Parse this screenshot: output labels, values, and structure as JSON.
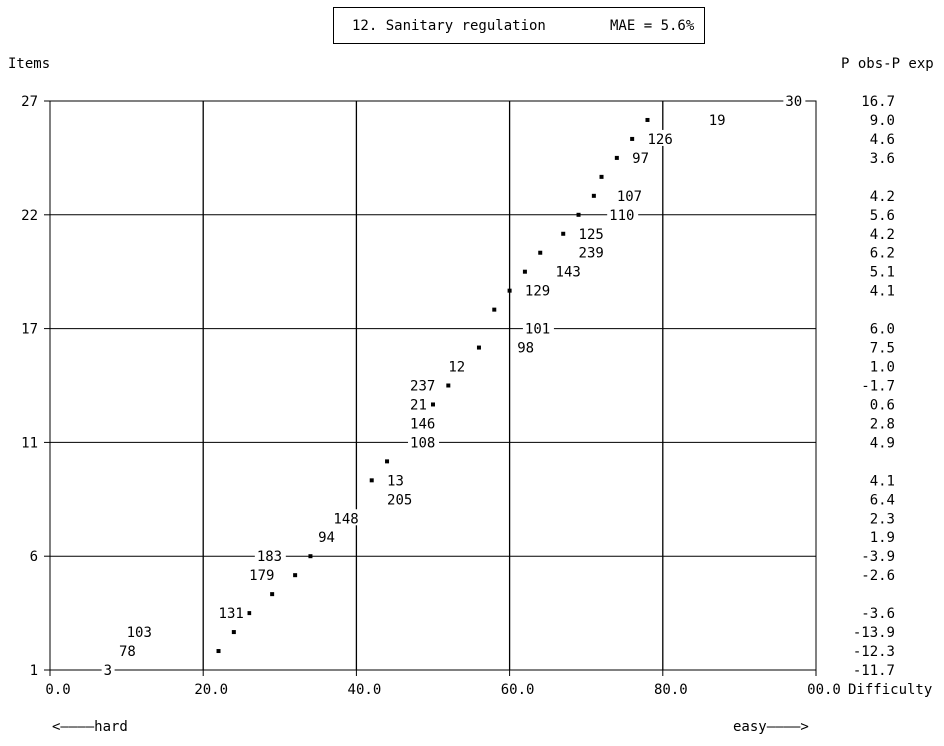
{
  "header": {
    "title": "12. Sanitary regulation",
    "mae": "MAE = 5.6%"
  },
  "left_axis_label": "Items",
  "right_axis_label": "P obs-P exp",
  "x_axis_label": "Difficulty",
  "footer": {
    "left": "<————hard",
    "right": "easy————>"
  },
  "chart_data": {
    "type": "scatter",
    "title": "12. Sanitary regulation",
    "annotation": "MAE = 5.6%",
    "xlabel": "Difficulty",
    "ylabel": "Items",
    "xlim": [
      0,
      100
    ],
    "ylim": [
      1,
      31
    ],
    "x_tick_labels": [
      "0.0",
      "20.0",
      "40.0",
      "60.0",
      "80.0",
      "00.0"
    ],
    "y_tick_labels": [
      {
        "label": "1",
        "row": 1
      },
      {
        "label": "6",
        "row": 7
      },
      {
        "label": "11",
        "row": 13
      },
      {
        "label": "17",
        "row": 19
      },
      {
        "label": "22",
        "row": 25
      },
      {
        "label": "27",
        "row": 31
      }
    ],
    "grid": true,
    "points": [
      {
        "row": 1,
        "x": null,
        "item": "3",
        "label_x": 7,
        "residual": "-11.7"
      },
      {
        "row": 2,
        "x": 22,
        "item": "78",
        "label_x": 9,
        "residual": "-12.3"
      },
      {
        "row": 3,
        "x": 24,
        "item": "103",
        "label_x": 10,
        "residual": "-13.9"
      },
      {
        "row": 4,
        "x": 26,
        "item": "131",
        "label_x": 22,
        "residual": "-3.6"
      },
      {
        "row": 5,
        "x": 29,
        "item": "",
        "label_x": null,
        "residual": ""
      },
      {
        "row": 6,
        "x": 32,
        "item": "179",
        "label_x": 26,
        "residual": "-2.6"
      },
      {
        "row": 7,
        "x": 34,
        "item": "183",
        "label_x": 27,
        "residual": "-3.9"
      },
      {
        "row": 8,
        "x": null,
        "item": "94",
        "label_x": 35,
        "residual": "1.9"
      },
      {
        "row": 9,
        "x": null,
        "item": "148",
        "label_x": 37,
        "residual": "2.3"
      },
      {
        "row": 10,
        "x": null,
        "item": "205",
        "label_x": 44,
        "residual": "6.4"
      },
      {
        "row": 11,
        "x": 42,
        "item": "13",
        "label_x": 44,
        "residual": "4.1"
      },
      {
        "row": 12,
        "x": 44,
        "item": "",
        "label_x": null,
        "residual": ""
      },
      {
        "row": 13,
        "x": null,
        "item": "108",
        "label_x": 47,
        "residual": "4.9"
      },
      {
        "row": 14,
        "x": null,
        "item": "146",
        "label_x": 47,
        "residual": "2.8"
      },
      {
        "row": 15,
        "x": 50,
        "item": "21",
        "label_x": 47,
        "residual": "0.6"
      },
      {
        "row": 16,
        "x": 52,
        "item": "237",
        "label_x": 47,
        "residual": "-1.7"
      },
      {
        "row": 17,
        "x": null,
        "item": "12",
        "label_x": 52,
        "residual": "1.0"
      },
      {
        "row": 18,
        "x": 56,
        "item": "98",
        "label_x": 61,
        "residual": "7.5"
      },
      {
        "row": 19,
        "x": null,
        "item": "101",
        "label_x": 62,
        "residual": "6.0"
      },
      {
        "row": 20,
        "x": 58,
        "item": "",
        "label_x": null,
        "residual": ""
      },
      {
        "row": 21,
        "x": 60,
        "item": "129",
        "label_x": 62,
        "residual": "4.1"
      },
      {
        "row": 22,
        "x": 62,
        "item": "143",
        "label_x": 66,
        "residual": "5.1"
      },
      {
        "row": 23,
        "x": 64,
        "item": "239",
        "label_x": 69,
        "residual": "6.2"
      },
      {
        "row": 24,
        "x": 67,
        "item": "125",
        "label_x": 69,
        "residual": "4.2"
      },
      {
        "row": 25,
        "x": 69,
        "item": "110",
        "label_x": 73,
        "residual": "5.6"
      },
      {
        "row": 26,
        "x": 71,
        "item": "107",
        "label_x": 74,
        "residual": "4.2"
      },
      {
        "row": 27,
        "x": 72,
        "item": "",
        "label_x": null,
        "residual": ""
      },
      {
        "row": 28,
        "x": 74,
        "item": "97",
        "label_x": 76,
        "residual": "3.6"
      },
      {
        "row": 29,
        "x": 76,
        "item": "126",
        "label_x": 78,
        "residual": "4.6"
      },
      {
        "row": 30,
        "x": 78,
        "item": "19",
        "label_x": 86,
        "residual": "9.0"
      },
      {
        "row": 31,
        "x": null,
        "item": "30",
        "label_x": 96,
        "residual": "16.7"
      }
    ]
  }
}
